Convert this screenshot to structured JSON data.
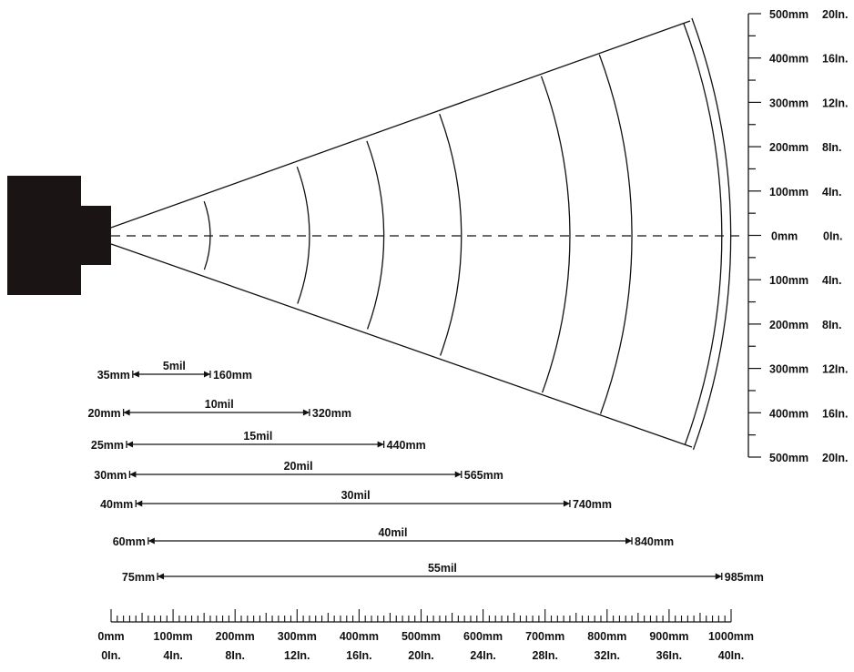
{
  "right_scale": {
    "rows": [
      {
        "mm": "500mm",
        "inch": "20In."
      },
      {
        "mm": "400mm",
        "inch": "16In."
      },
      {
        "mm": "300mm",
        "inch": "12In."
      },
      {
        "mm": "200mm",
        "inch": "8In."
      },
      {
        "mm": "100mm",
        "inch": "4In."
      },
      {
        "mm": "0mm",
        "inch": "0In."
      },
      {
        "mm": "100mm",
        "inch": "4In."
      },
      {
        "mm": "200mm",
        "inch": "8In."
      },
      {
        "mm": "300mm",
        "inch": "12In."
      },
      {
        "mm": "400mm",
        "inch": "16In."
      },
      {
        "mm": "500mm",
        "inch": "20In."
      }
    ]
  },
  "bottom_scale": {
    "labels": [
      {
        "mm": "0mm",
        "inch": "0In."
      },
      {
        "mm": "100mm",
        "inch": "4In."
      },
      {
        "mm": "200mm",
        "inch": "8In."
      },
      {
        "mm": "300mm",
        "inch": "12In."
      },
      {
        "mm": "400mm",
        "inch": "16In."
      },
      {
        "mm": "500mm",
        "inch": "20In."
      },
      {
        "mm": "600mm",
        "inch": "24In."
      },
      {
        "mm": "700mm",
        "inch": "28In."
      },
      {
        "mm": "800mm",
        "inch": "32In."
      },
      {
        "mm": "900mm",
        "inch": "36In."
      },
      {
        "mm": "1000mm",
        "inch": "40In."
      }
    ]
  },
  "ranges": [
    {
      "label": "5mil",
      "near": "35mm",
      "far": "160mm",
      "near_value": 35,
      "far_value": 160
    },
    {
      "label": "10mil",
      "near": "20mm",
      "far": "320mm",
      "near_value": 20,
      "far_value": 320
    },
    {
      "label": "15mil",
      "near": "25mm",
      "far": "440mm",
      "near_value": 25,
      "far_value": 440
    },
    {
      "label": "20mil",
      "near": "30mm",
      "far": "565mm",
      "near_value": 30,
      "far_value": 565
    },
    {
      "label": "30mil",
      "near": "40mm",
      "far": "740mm",
      "near_value": 40,
      "far_value": 740
    },
    {
      "label": "40mil",
      "near": "60mm",
      "far": "840mm",
      "near_value": 60,
      "far_value": 840
    },
    {
      "label": "55mil",
      "near": "75mm",
      "far": "985mm",
      "near_value": 75,
      "far_value": 985
    }
  ],
  "colors": {
    "ink": "#111111",
    "background": "#ffffff"
  }
}
